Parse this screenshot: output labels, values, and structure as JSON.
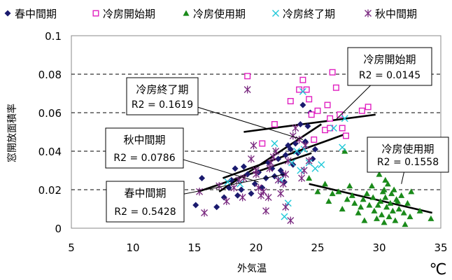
{
  "chart_data": {
    "type": "scatter",
    "title": "",
    "xlabel": "外気温",
    "ylabel": "窓開放面積率",
    "unit": "℃",
    "xlim": [
      5,
      35
    ],
    "ylim": [
      0,
      0.1
    ],
    "xticks": [
      "5",
      "10",
      "15",
      "20",
      "25",
      "30",
      "35"
    ],
    "yticks": [
      "0",
      "0.02",
      "0.04",
      "0.06",
      "0.08",
      "0.1"
    ],
    "grid": "horizontal dashed",
    "legend_position": "top",
    "series": [
      {
        "name": "春中間期",
        "color": "#1a1a6e",
        "marker": "diamond",
        "points": [
          [
            15.1,
            0.012
          ],
          [
            15.6,
            0.026
          ],
          [
            16.8,
            0.011
          ],
          [
            17.4,
            0.016
          ],
          [
            17.8,
            0.021
          ],
          [
            18.0,
            0.025
          ],
          [
            18.3,
            0.031
          ],
          [
            18.5,
            0.017
          ],
          [
            18.8,
            0.02
          ],
          [
            19.0,
            0.032
          ],
          [
            19.3,
            0.028
          ],
          [
            19.6,
            0.018
          ],
          [
            19.9,
            0.023
          ],
          [
            20.2,
            0.029
          ],
          [
            20.5,
            0.021
          ],
          [
            20.8,
            0.026
          ],
          [
            21.0,
            0.034
          ],
          [
            21.3,
            0.031
          ],
          [
            21.5,
            0.027
          ],
          [
            21.8,
            0.036
          ],
          [
            22.0,
            0.03
          ],
          [
            22.2,
            0.028
          ],
          [
            22.4,
            0.038
          ],
          [
            22.6,
            0.043
          ],
          [
            22.8,
            0.041
          ],
          [
            23.0,
            0.033
          ],
          [
            23.2,
            0.044
          ],
          [
            23.4,
            0.039
          ],
          [
            23.6,
            0.054
          ],
          [
            23.8,
            0.064
          ],
          [
            24.0,
            0.045
          ],
          [
            24.2,
            0.053
          ],
          [
            24.4,
            0.06
          ],
          [
            24.6,
            0.036
          ],
          [
            24.8,
            0.041
          ],
          [
            22.3,
            0.024
          ]
        ]
      },
      {
        "name": "冷房開始期",
        "color": "#e020c0",
        "marker": "square-open",
        "points": [
          [
            19.3,
            0.079
          ],
          [
            20.5,
            0.044
          ],
          [
            21.5,
            0.054
          ],
          [
            22.8,
            0.066
          ],
          [
            23.5,
            0.072
          ],
          [
            23.8,
            0.077
          ],
          [
            24.1,
            0.072
          ],
          [
            24.3,
            0.067
          ],
          [
            24.5,
            0.059
          ],
          [
            24.7,
            0.046
          ],
          [
            25.0,
            0.061
          ],
          [
            25.6,
            0.051
          ],
          [
            25.8,
            0.064
          ],
          [
            26.0,
            0.057
          ],
          [
            26.2,
            0.081
          ],
          [
            26.5,
            0.073
          ],
          [
            26.8,
            0.059
          ],
          [
            27.0,
            0.052
          ],
          [
            27.3,
            0.048
          ],
          [
            28.6,
            0.061
          ],
          [
            29.1,
            0.063
          ],
          [
            26.0,
            0.052
          ]
        ]
      },
      {
        "name": "冷房使用期",
        "color": "#1a8a1a",
        "marker": "triangle",
        "points": [
          [
            24.3,
            0.026
          ],
          [
            25.0,
            0.019
          ],
          [
            25.6,
            0.023
          ],
          [
            25.9,
            0.014
          ],
          [
            26.2,
            0.018
          ],
          [
            26.7,
            0.019
          ],
          [
            27.0,
            0.01
          ],
          [
            27.2,
            0.04
          ],
          [
            27.4,
            0.015
          ],
          [
            27.6,
            0.022
          ],
          [
            27.8,
            0.017
          ],
          [
            28.0,
            0.013
          ],
          [
            28.3,
            0.008
          ],
          [
            28.5,
            0.011
          ],
          [
            28.7,
            0.015
          ],
          [
            29.0,
            0.018
          ],
          [
            29.2,
            0.012
          ],
          [
            29.4,
            0.022
          ],
          [
            29.6,
            0.009
          ],
          [
            29.8,
            0.005
          ],
          [
            30.0,
            0.028
          ],
          [
            30.1,
            0.014
          ],
          [
            30.2,
            0.007
          ],
          [
            30.3,
            0.019
          ],
          [
            30.4,
            0.003
          ],
          [
            30.5,
            0.016
          ],
          [
            30.6,
            0.011
          ],
          [
            30.7,
            0.023
          ],
          [
            30.8,
            0.006
          ],
          [
            30.9,
            0.013
          ],
          [
            31.0,
            0.018
          ],
          [
            31.1,
            0.009
          ],
          [
            31.2,
            0.02
          ],
          [
            31.3,
            0.004
          ],
          [
            31.5,
            0.014
          ],
          [
            31.6,
            0.01
          ],
          [
            31.8,
            0.017
          ],
          [
            32.0,
            0.008
          ],
          [
            32.1,
            0.002
          ],
          [
            32.3,
            0.013
          ],
          [
            32.5,
            0.006
          ],
          [
            32.6,
            0.019
          ],
          [
            33.3,
            0.009
          ],
          [
            34.2,
            0.005
          ],
          [
            30.5,
            0.025
          ],
          [
            29.5,
            0.016
          ],
          [
            28.8,
            0.004
          ],
          [
            29.9,
            0.012
          ],
          [
            30.4,
            0.02
          ],
          [
            31.4,
            0.015
          ]
        ]
      },
      {
        "name": "冷房終了期",
        "color": "#20c8d8",
        "marker": "x",
        "points": [
          [
            17.7,
            0.024
          ],
          [
            18.7,
            0.023
          ],
          [
            21.5,
            0.044
          ],
          [
            22.0,
            0.025
          ],
          [
            22.3,
            0.006
          ],
          [
            22.6,
            0.013
          ],
          [
            22.9,
            0.034
          ],
          [
            23.3,
            0.04
          ],
          [
            23.6,
            0.03
          ],
          [
            23.8,
            0.071
          ],
          [
            24.3,
            0.034
          ],
          [
            24.8,
            0.031
          ],
          [
            25.3,
            0.033
          ],
          [
            26.3,
            0.052
          ],
          [
            27.2,
            0.057
          ],
          [
            27.0,
            0.042
          ],
          [
            23.9,
            0.041
          ]
        ]
      },
      {
        "name": "秋中間期",
        "color": "#7a2a80",
        "marker": "asterisk",
        "points": [
          [
            15.4,
            0.019
          ],
          [
            15.8,
            0.008
          ],
          [
            17.0,
            0.022
          ],
          [
            17.6,
            0.014
          ],
          [
            18.2,
            0.021
          ],
          [
            18.6,
            0.025
          ],
          [
            19.0,
            0.026
          ],
          [
            19.3,
            0.072
          ],
          [
            19.6,
            0.036
          ],
          [
            19.8,
            0.043
          ],
          [
            20.0,
            0.03
          ],
          [
            20.2,
            0.021
          ],
          [
            20.4,
            0.017
          ],
          [
            20.6,
            0.019
          ],
          [
            20.8,
            0.009
          ],
          [
            21.0,
            0.016
          ],
          [
            21.2,
            0.034
          ],
          [
            21.4,
            0.037
          ],
          [
            21.6,
            0.04
          ],
          [
            21.8,
            0.025
          ],
          [
            22.0,
            0.018
          ],
          [
            22.2,
            0.023
          ],
          [
            22.4,
            0.028
          ],
          [
            22.6,
            0.035
          ],
          [
            22.8,
            0.004
          ],
          [
            23.0,
            0.048
          ],
          [
            23.2,
            0.052
          ],
          [
            23.5,
            0.046
          ],
          [
            23.7,
            0.026
          ],
          [
            23.9,
            0.03
          ],
          [
            24.0,
            0.043
          ],
          [
            24.3,
            0.035
          ],
          [
            21.1,
            0.031
          ],
          [
            20.0,
            0.028
          ],
          [
            18.9,
            0.016
          ],
          [
            22.4,
            0.011
          ]
        ]
      }
    ],
    "trendlines": [
      {
        "series": "春中間期",
        "from": [
          17.0,
          0.019
        ],
        "to": [
          25.3,
          0.054
        ]
      },
      {
        "series": "冷房開始期",
        "from": [
          19.0,
          0.05
        ],
        "to": [
          29.7,
          0.059
        ]
      },
      {
        "series": "冷房使用期",
        "from": [
          24.3,
          0.023
        ],
        "to": [
          34.3,
          0.008
        ]
      },
      {
        "series": "冷房終了期",
        "from": [
          17.3,
          0.026
        ],
        "to": [
          27.3,
          0.049
        ]
      },
      {
        "series": "秋中間期",
        "from": [
          15.3,
          0.019
        ],
        "to": [
          24.5,
          0.039
        ]
      }
    ],
    "annotations": [
      {
        "series": "冷房開始期",
        "name": "冷房開始期",
        "r2": "R2 = 0.0145"
      },
      {
        "series": "冷房終了期",
        "name": "冷房終了期",
        "r2": "R2 = 0.1619"
      },
      {
        "series": "秋中間期",
        "name": "秋中間期",
        "r2": "R2 = 0.0786"
      },
      {
        "series": "冷房使用期",
        "name": "冷房使用期",
        "r2": "R2 = 0.1558"
      },
      {
        "series": "春中間期",
        "name": "春中間期",
        "r2": "R2 = 0.5428"
      }
    ]
  }
}
